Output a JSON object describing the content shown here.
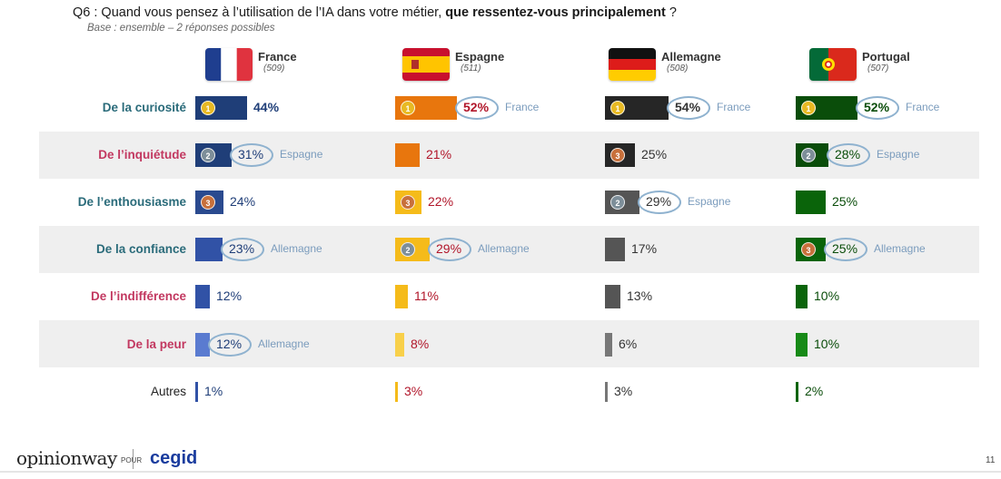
{
  "header": {
    "title_prefix": "Q6 : Quand vous pensez à l’utilisation de l’IA dans votre métier, ",
    "title_bold": "que ressentez-vous principalement",
    "title_suffix": " ?",
    "subtitle": "Base : ensemble – 2 réponses possibles"
  },
  "countries": [
    {
      "name": "France",
      "base": "(509)",
      "flag_icon": "france-flag-icon"
    },
    {
      "name": "Espagne",
      "base": "(511)",
      "flag_icon": "spain-flag-icon"
    },
    {
      "name": "Allemagne",
      "base": "(508)",
      "flag_icon": "germany-flag-icon"
    },
    {
      "name": "Portugal",
      "base": "(507)",
      "flag_icon": "portugal-flag-icon"
    }
  ],
  "chart_data": {
    "type": "bar",
    "orientation": "horizontal",
    "categories": [
      "De la curiosité",
      "De l’inquiétude",
      "De l’enthousiasme",
      "De la confiance",
      "De l’indifférence",
      "De la peur",
      "Autres"
    ],
    "series": [
      {
        "name": "France",
        "values": [
          44,
          31,
          24,
          23,
          12,
          12,
          1
        ],
        "labels": [
          "44%",
          "31%",
          "24%",
          "23%",
          "12%",
          "12%",
          "1%"
        ],
        "ranks": [
          1,
          2,
          3,
          null,
          null,
          null,
          null
        ],
        "circled": [
          false,
          true,
          false,
          true,
          false,
          true,
          false
        ],
        "comparisons": [
          "",
          "Espagne",
          "",
          "Allemagne",
          "",
          "Allemagne",
          ""
        ]
      },
      {
        "name": "Espagne",
        "values": [
          52,
          21,
          22,
          29,
          11,
          8,
          3
        ],
        "labels": [
          "52%",
          "21%",
          "22%",
          "29%",
          "11%",
          "8%",
          "3%"
        ],
        "ranks": [
          1,
          null,
          3,
          2,
          null,
          null,
          null
        ],
        "circled": [
          true,
          false,
          false,
          true,
          false,
          false,
          false
        ],
        "comparisons": [
          "France",
          "",
          "",
          "Allemagne",
          "",
          "",
          ""
        ]
      },
      {
        "name": "Allemagne",
        "values": [
          54,
          25,
          29,
          17,
          13,
          6,
          3
        ],
        "labels": [
          "54%",
          "25%",
          "29%",
          "17%",
          "13%",
          "6%",
          "3%"
        ],
        "ranks": [
          1,
          3,
          2,
          null,
          null,
          null,
          null
        ],
        "circled": [
          true,
          false,
          true,
          false,
          false,
          false,
          false
        ],
        "comparisons": [
          "France",
          "",
          "Espagne",
          "",
          "",
          "",
          ""
        ]
      },
      {
        "name": "Portugal",
        "values": [
          52,
          28,
          25,
          25,
          10,
          10,
          2
        ],
        "labels": [
          "52%",
          "28%",
          "25%",
          "25%",
          "10%",
          "10%",
          "2%"
        ],
        "ranks": [
          1,
          2,
          null,
          3,
          null,
          null,
          null
        ],
        "circled": [
          true,
          true,
          false,
          true,
          false,
          false,
          false
        ],
        "comparisons": [
          "France",
          "Espagne",
          "",
          "Allemagne",
          "",
          "",
          ""
        ]
      }
    ],
    "label_colors": [
      "teal",
      "red",
      "teal",
      "teal",
      "red",
      "red",
      "plain"
    ],
    "label_hex": {
      "teal": "#2a6b7a",
      "red": "#c23860",
      "plain": "#222222"
    },
    "bar_colors": [
      [
        "#1f3e78",
        "#1f3e78",
        "#2a4a8f",
        "#3152a6",
        "#3152a6",
        "#5a7bd0",
        "#3152a6"
      ],
      [
        "#e8760d",
        "#e8760d",
        "#f5bb1a",
        "#f5bb1a",
        "#f5bb1a",
        "#f8d04a",
        "#f5bb1a"
      ],
      [
        "#262626",
        "#262626",
        "#555555",
        "#555555",
        "#555555",
        "#777777",
        "#777777"
      ],
      [
        "#0a4d0a",
        "#0a4d0a",
        "#0a640a",
        "#0a640a",
        "#0a640a",
        "#178a17",
        "#0a640a"
      ]
    ],
    "value_colors": [
      "#1f3e78",
      "#b1162a",
      "#333333",
      "#0a4d0a"
    ]
  },
  "footer": {
    "brand_left": "opinionway",
    "pour": "POUR",
    "brand_right": "cegid",
    "page_number": "11"
  }
}
